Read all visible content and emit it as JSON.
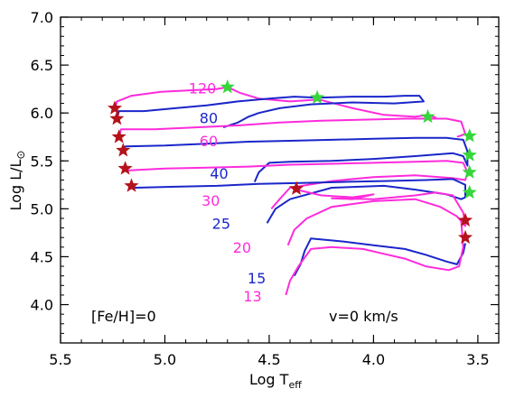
{
  "chart_data": {
    "type": "line",
    "xlabel": "Log T",
    "xlabel_sub": "eff",
    "ylabel": "Log L/L",
    "ylabel_symbol": "⊙",
    "xlim": [
      5.5,
      3.4
    ],
    "ylim": [
      3.6,
      7.0
    ],
    "x_ticks": [
      "5.5",
      "5.0",
      "4.5",
      "4.0",
      "3.5"
    ],
    "x_tick_values": [
      5.5,
      5.0,
      4.5,
      4.0,
      3.5
    ],
    "y_ticks": [
      "7.0",
      "6.5",
      "6.0",
      "5.5",
      "5.0",
      "4.5",
      "4.0"
    ],
    "y_tick_values": [
      7.0,
      6.5,
      6.0,
      5.5,
      5.0,
      4.5,
      4.0
    ],
    "annotations": {
      "metallicity": "[Fe/H]=0",
      "rotation": "v=0 km/s"
    },
    "colors": {
      "magenta": "#ff2bdc",
      "blue": "#1a26c9",
      "red_star": "#b5121b",
      "green_star": "#36d63a"
    },
    "series": [
      {
        "mass_label": "120",
        "color": "magenta",
        "label_pos": [
          4.82,
          6.26
        ],
        "points": [
          [
            5.24,
            6.03
          ],
          [
            5.23,
            6.12
          ],
          [
            5.16,
            6.18
          ],
          [
            5.02,
            6.22
          ],
          [
            4.85,
            6.24
          ],
          [
            4.75,
            6.25
          ],
          [
            4.7,
            6.27
          ],
          [
            4.64,
            6.21
          ],
          [
            4.55,
            6.15
          ],
          [
            4.4,
            6.12
          ],
          [
            4.26,
            6.14
          ],
          [
            4.1,
            6.05
          ],
          [
            3.95,
            5.98
          ],
          [
            3.8,
            5.96
          ],
          [
            3.74,
            5.98
          ],
          [
            3.7,
            5.95
          ]
        ]
      },
      {
        "mass_label": "80",
        "color": "blue",
        "label_pos": [
          4.79,
          5.95
        ],
        "points": [
          [
            5.23,
            5.94
          ],
          [
            5.22,
            6.02
          ],
          [
            5.1,
            6.02
          ],
          [
            4.95,
            6.05
          ],
          [
            4.8,
            6.08
          ],
          [
            4.65,
            6.12
          ],
          [
            4.5,
            6.15
          ],
          [
            4.38,
            6.17
          ],
          [
            4.27,
            6.16
          ],
          [
            4.1,
            6.17
          ],
          [
            3.95,
            6.17
          ],
          [
            3.85,
            6.18
          ],
          [
            3.78,
            6.18
          ],
          [
            3.76,
            6.12
          ],
          [
            3.9,
            6.1
          ],
          [
            4.1,
            6.11
          ],
          [
            4.3,
            6.09
          ],
          [
            4.45,
            6.05
          ],
          [
            4.55,
            6.0
          ],
          [
            4.6,
            5.96
          ],
          [
            4.65,
            5.9
          ],
          [
            4.72,
            5.85
          ]
        ]
      },
      {
        "mass_label": "60",
        "color": "magenta",
        "label_pos": [
          4.79,
          5.71
        ],
        "points": [
          [
            5.22,
            5.75
          ],
          [
            5.21,
            5.83
          ],
          [
            5.05,
            5.83
          ],
          [
            4.85,
            5.85
          ],
          [
            4.65,
            5.87
          ],
          [
            4.45,
            5.9
          ],
          [
            4.25,
            5.92
          ],
          [
            4.05,
            5.93
          ],
          [
            3.85,
            5.94
          ],
          [
            3.65,
            5.94
          ],
          [
            3.58,
            5.91
          ],
          [
            3.56,
            5.78
          ],
          [
            3.6,
            5.75
          ]
        ]
      },
      {
        "mass_label": "40",
        "color": "blue",
        "label_pos": [
          4.74,
          5.37
        ],
        "points": [
          [
            5.2,
            5.61
          ],
          [
            5.19,
            5.65
          ],
          [
            5.0,
            5.66
          ],
          [
            4.8,
            5.68
          ],
          [
            4.6,
            5.7
          ],
          [
            4.4,
            5.71
          ],
          [
            4.2,
            5.72
          ],
          [
            4.0,
            5.73
          ],
          [
            3.8,
            5.74
          ],
          [
            3.65,
            5.74
          ],
          [
            3.57,
            5.72
          ],
          [
            3.55,
            5.6
          ],
          [
            3.55,
            5.45
          ],
          [
            3.57,
            5.55
          ],
          [
            3.62,
            5.58
          ],
          [
            3.8,
            5.55
          ],
          [
            4.0,
            5.52
          ],
          [
            4.2,
            5.5
          ],
          [
            4.4,
            5.49
          ],
          [
            4.5,
            5.48
          ],
          [
            4.55,
            5.38
          ],
          [
            4.57,
            5.28
          ]
        ]
      },
      {
        "mass_label": "30",
        "color": "magenta",
        "label_pos": [
          4.78,
          5.09
        ],
        "points": [
          [
            5.19,
            5.42
          ],
          [
            5.18,
            5.4
          ],
          [
            5.0,
            5.42
          ],
          [
            4.8,
            5.43
          ],
          [
            4.6,
            5.44
          ],
          [
            4.4,
            5.46
          ],
          [
            4.2,
            5.47
          ],
          [
            4.0,
            5.48
          ],
          [
            3.8,
            5.49
          ],
          [
            3.65,
            5.5
          ],
          [
            3.57,
            5.48
          ],
          [
            3.55,
            5.38
          ],
          [
            3.56,
            5.3
          ],
          [
            3.62,
            5.32
          ],
          [
            3.8,
            5.35
          ],
          [
            4.0,
            5.33
          ],
          [
            4.2,
            5.29
          ],
          [
            4.4,
            5.22
          ],
          [
            4.45,
            5.1
          ],
          [
            4.49,
            5.0
          ]
        ]
      },
      {
        "mass_label": "25",
        "color": "blue",
        "label_pos": [
          4.73,
          4.85
        ],
        "points": [
          [
            5.16,
            5.24
          ],
          [
            5.14,
            5.22
          ],
          [
            4.95,
            5.23
          ],
          [
            4.75,
            5.24
          ],
          [
            4.55,
            5.26
          ],
          [
            4.35,
            5.27
          ],
          [
            4.15,
            5.28
          ],
          [
            3.95,
            5.29
          ],
          [
            3.75,
            5.3
          ],
          [
            3.62,
            5.31
          ],
          [
            3.56,
            5.25
          ],
          [
            3.56,
            5.12
          ],
          [
            3.58,
            5.1
          ],
          [
            3.65,
            5.15
          ],
          [
            3.8,
            5.2
          ],
          [
            3.95,
            5.24
          ],
          [
            4.2,
            5.22
          ],
          [
            4.4,
            5.1
          ],
          [
            4.47,
            5.0
          ],
          [
            4.51,
            4.85
          ]
        ]
      },
      {
        "mass_label": "20",
        "color": "magenta",
        "label_pos": [
          4.63,
          4.6
        ],
        "points": [
          [
            4.37,
            5.2
          ],
          [
            4.25,
            5.14
          ],
          [
            4.1,
            5.12
          ],
          [
            4.0,
            5.15
          ],
          [
            4.1,
            5.1
          ],
          [
            4.2,
            5.11
          ],
          [
            4.0,
            5.1
          ],
          [
            3.8,
            5.14
          ],
          [
            3.7,
            5.17
          ],
          [
            3.62,
            5.14
          ],
          [
            3.57,
            4.96
          ],
          [
            3.56,
            4.82
          ],
          [
            3.6,
            4.92
          ],
          [
            3.68,
            5.02
          ],
          [
            3.8,
            5.1
          ],
          [
            4.0,
            5.08
          ],
          [
            4.2,
            5.02
          ],
          [
            4.32,
            4.9
          ],
          [
            4.38,
            4.78
          ],
          [
            4.41,
            4.62
          ]
        ]
      },
      {
        "mass_label": "15",
        "color": "blue",
        "label_pos": [
          4.56,
          4.28
        ],
        "points": [
          [
            3.56,
            4.64
          ],
          [
            3.57,
            4.54
          ],
          [
            3.6,
            4.42
          ],
          [
            3.65,
            4.45
          ],
          [
            3.75,
            4.52
          ],
          [
            3.85,
            4.58
          ],
          [
            4.0,
            4.62
          ],
          [
            4.15,
            4.66
          ],
          [
            4.3,
            4.69
          ],
          [
            4.33,
            4.56
          ],
          [
            4.35,
            4.42
          ],
          [
            4.38,
            4.3
          ]
        ]
      },
      {
        "mass_label": "13",
        "color": "magenta",
        "label_pos": [
          4.58,
          4.09
        ],
        "points": [
          [
            3.58,
            4.88
          ],
          [
            3.57,
            4.6
          ],
          [
            3.59,
            4.4
          ],
          [
            3.64,
            4.36
          ],
          [
            3.75,
            4.4
          ],
          [
            3.85,
            4.48
          ],
          [
            3.95,
            4.53
          ],
          [
            4.05,
            4.58
          ],
          [
            4.2,
            4.6
          ],
          [
            4.3,
            4.58
          ],
          [
            4.36,
            4.4
          ],
          [
            4.4,
            4.25
          ],
          [
            4.42,
            4.1
          ]
        ]
      }
    ],
    "stars": [
      {
        "x": 5.24,
        "y": 6.05,
        "color": "red_star"
      },
      {
        "x": 5.23,
        "y": 5.94,
        "color": "red_star"
      },
      {
        "x": 5.22,
        "y": 5.75,
        "color": "red_star"
      },
      {
        "x": 5.2,
        "y": 5.61,
        "color": "red_star"
      },
      {
        "x": 5.19,
        "y": 5.42,
        "color": "red_star"
      },
      {
        "x": 5.16,
        "y": 5.24,
        "color": "red_star"
      },
      {
        "x": 4.37,
        "y": 5.21,
        "color": "red_star"
      },
      {
        "x": 3.56,
        "y": 4.88,
        "color": "red_star"
      },
      {
        "x": 3.56,
        "y": 4.7,
        "color": "red_star"
      },
      {
        "x": 4.7,
        "y": 6.27,
        "color": "green_star"
      },
      {
        "x": 4.27,
        "y": 6.16,
        "color": "green_star"
      },
      {
        "x": 3.74,
        "y": 5.96,
        "color": "green_star"
      },
      {
        "x": 3.54,
        "y": 5.76,
        "color": "green_star"
      },
      {
        "x": 3.54,
        "y": 5.56,
        "color": "green_star"
      },
      {
        "x": 3.54,
        "y": 5.38,
        "color": "green_star"
      },
      {
        "x": 3.54,
        "y": 5.17,
        "color": "green_star"
      }
    ]
  }
}
